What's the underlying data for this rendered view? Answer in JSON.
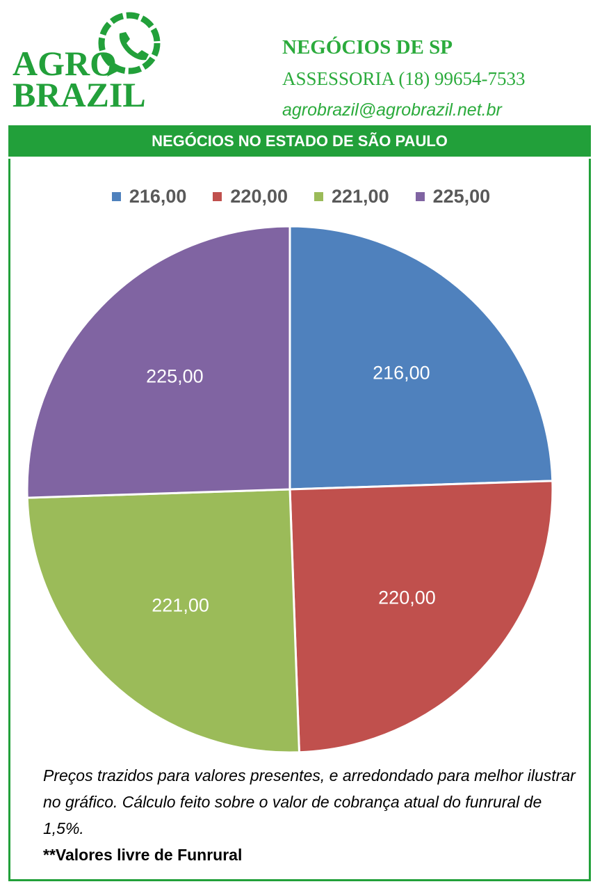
{
  "logo": {
    "line1": "AGRO",
    "line2": "BRAZIL"
  },
  "header": {
    "title": "NEGÓCIOS DE SP",
    "phone": "ASSESSORIA (18) 99654-7533",
    "email": "agrobrazil@agrobrazil.net.br"
  },
  "chart_data": {
    "type": "pie",
    "title": "NEGÓCIOS NO ESTADO DE SÃO PAULO",
    "legend_position": "top",
    "categories": [
      "216,00",
      "220,00",
      "221,00",
      "225,00"
    ],
    "values": [
      216,
      220,
      221,
      225
    ],
    "data_labels": [
      "216,00",
      "220,00",
      "221,00",
      "225,00"
    ],
    "colors": [
      "#4f81bd",
      "#c0504d",
      "#9bbb59",
      "#8064a2"
    ]
  },
  "colors": {
    "brand_green": "#22a03a"
  },
  "note": {
    "text": "Preços trazidos para valores presentes, e arredondado para melhor ilustrar no gráfico. Cálculo feito sobre o valor de cobrança atual do funrural de 1,5%.",
    "bold": "**Valores livre de Funrural"
  }
}
